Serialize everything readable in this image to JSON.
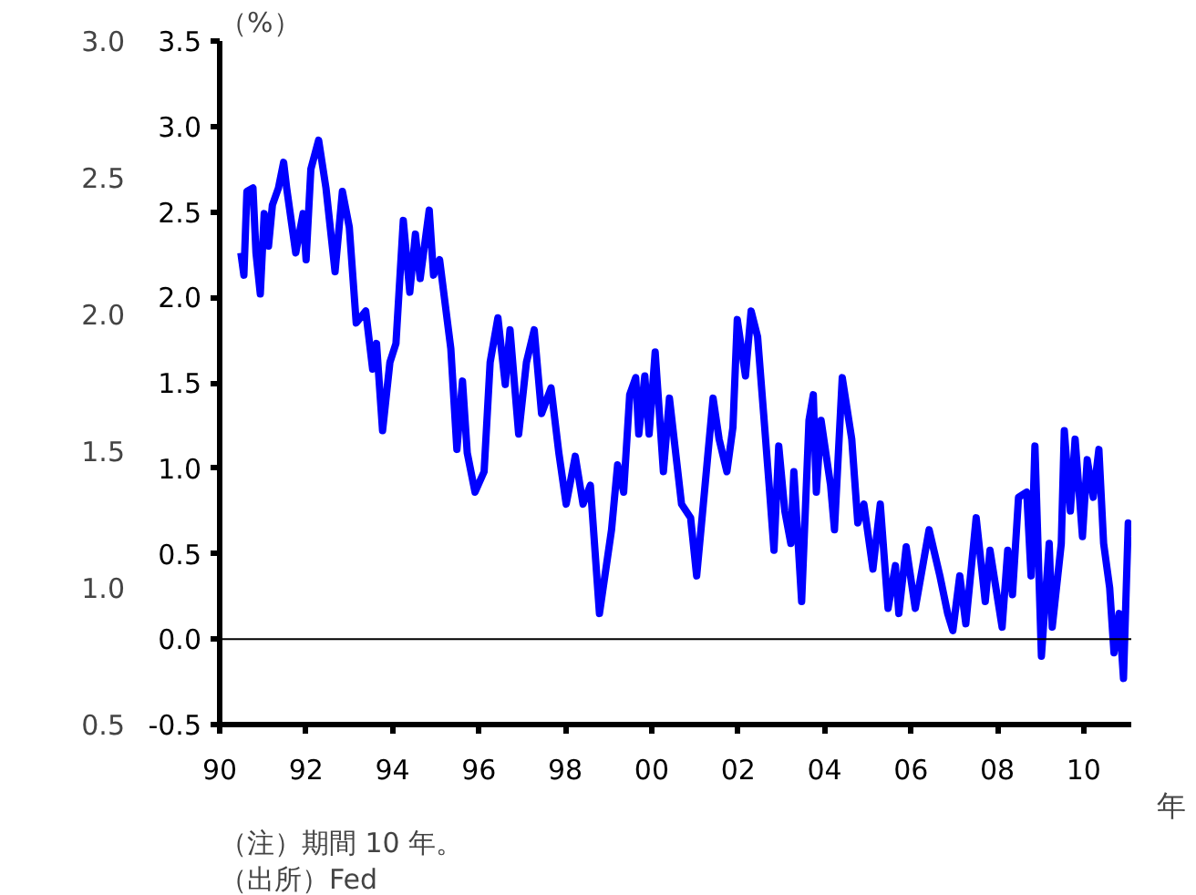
{
  "chart_data": {
    "type": "line",
    "ylabel": "（%）",
    "xlabel": "年",
    "annotations": [
      "（注）期間 10 年。",
      "（出所）Fed"
    ],
    "x": [
      1990.49,
      1990.56,
      1990.63,
      1990.77,
      1990.84,
      1990.94,
      1991.03,
      1991.13,
      1991.22,
      1991.36,
      1991.48,
      1991.55,
      1991.76,
      1991.93,
      1992.0,
      1992.11,
      1992.29,
      1992.46,
      1992.67,
      1992.84,
      1993.0,
      1993.16,
      1993.38,
      1993.54,
      1993.63,
      1993.77,
      1993.94,
      1994.08,
      1994.25,
      1994.4,
      1994.53,
      1994.64,
      1994.85,
      1994.95,
      1995.09,
      1995.35,
      1995.49,
      1995.62,
      1995.73,
      1995.91,
      1996.12,
      1996.26,
      1996.44,
      1996.61,
      1996.72,
      1996.92,
      1997.1,
      1997.28,
      1997.45,
      1997.67,
      1997.85,
      1998.02,
      1998.23,
      1998.41,
      1998.58,
      1998.79,
      1999.07,
      1999.21,
      1999.35,
      1999.49,
      1999.63,
      1999.7,
      1999.84,
      1999.94,
      2000.08,
      2000.27,
      2000.41,
      2000.69,
      2000.9,
      2001.04,
      2001.18,
      2001.42,
      2001.56,
      2001.74,
      2001.88,
      2001.98,
      2002.17,
      2002.3,
      2002.45,
      2002.59,
      2002.73,
      2002.83,
      2002.94,
      2003.08,
      2003.22,
      2003.29,
      2003.47,
      2003.64,
      2003.74,
      2003.81,
      2003.92,
      2004.14,
      2004.23,
      2004.41,
      2004.63,
      2004.77,
      2004.91,
      2005.12,
      2005.29,
      2005.47,
      2005.64,
      2005.72,
      2005.89,
      2006.1,
      2006.42,
      2006.67,
      2006.85,
      2006.97,
      2007.13,
      2007.27,
      2007.51,
      2007.72,
      2007.83,
      2008.11,
      2008.24,
      2008.35,
      2008.49,
      2008.68,
      2008.78,
      2008.87,
      2009.02,
      2009.2,
      2009.27,
      2009.48,
      2009.55,
      2009.69,
      2009.8,
      2009.97,
      2010.08,
      2010.22,
      2010.35,
      2010.46,
      2010.6,
      2010.7,
      2010.82,
      2010.92,
      2011.03,
      2011.1
    ],
    "series": [
      {
        "color": "#0000ff",
        "values": [
          2.26,
          2.13,
          2.62,
          2.64,
          2.26,
          2.02,
          2.49,
          2.3,
          2.54,
          2.64,
          2.79,
          2.64,
          2.26,
          2.49,
          2.22,
          2.75,
          2.92,
          2.64,
          2.15,
          2.62,
          2.41,
          1.85,
          1.92,
          1.58,
          1.73,
          1.22,
          1.62,
          1.73,
          2.45,
          2.03,
          2.37,
          2.11,
          2.51,
          2.13,
          2.22,
          1.7,
          1.11,
          1.51,
          1.09,
          0.86,
          0.98,
          1.62,
          1.88,
          1.49,
          1.81,
          1.2,
          1.62,
          1.81,
          1.32,
          1.47,
          1.09,
          0.79,
          1.07,
          0.79,
          0.9,
          0.15,
          0.64,
          1.02,
          0.86,
          1.43,
          1.53,
          1.2,
          1.54,
          1.2,
          1.68,
          0.98,
          1.41,
          0.79,
          0.71,
          0.37,
          0.75,
          1.41,
          1.17,
          0.98,
          1.24,
          1.87,
          1.54,
          1.92,
          1.77,
          1.32,
          0.86,
          0.52,
          1.13,
          0.75,
          0.56,
          0.98,
          0.22,
          1.28,
          1.43,
          0.86,
          1.28,
          0.9,
          0.64,
          1.53,
          1.17,
          0.68,
          0.79,
          0.41,
          0.79,
          0.18,
          0.43,
          0.15,
          0.54,
          0.18,
          0.64,
          0.37,
          0.15,
          0.05,
          0.37,
          0.09,
          0.71,
          0.22,
          0.52,
          0.07,
          0.52,
          0.26,
          0.83,
          0.86,
          0.37,
          1.13,
          -0.1,
          0.56,
          0.07,
          0.56,
          1.22,
          0.75,
          1.17,
          0.6,
          1.05,
          0.83,
          1.11,
          0.56,
          0.3,
          -0.08,
          0.15,
          -0.23,
          0.68,
          0.6
        ]
      }
    ],
    "xlim": [
      1990,
      2011.1
    ],
    "xticks": [
      {
        "value": 1990,
        "label": "90"
      },
      {
        "value": 1992,
        "label": "92"
      },
      {
        "value": 1994,
        "label": "94"
      },
      {
        "value": 1996,
        "label": "96"
      },
      {
        "value": 1998,
        "label": "98"
      },
      {
        "value": 2000,
        "label": "00"
      },
      {
        "value": 2002,
        "label": "02"
      },
      {
        "value": 2004,
        "label": "04"
      },
      {
        "value": 2006,
        "label": "06"
      },
      {
        "value": 2008,
        "label": "08"
      },
      {
        "value": 2010,
        "label": "10"
      }
    ],
    "ylim": [
      -0.5,
      3.5
    ],
    "yticks": [
      {
        "value": -0.5,
        "label": "-0.5"
      },
      {
        "value": 0,
        "label": "0.0"
      },
      {
        "value": 0.5,
        "label": "0.5"
      },
      {
        "value": 1,
        "label": "1.0"
      },
      {
        "value": 1.5,
        "label": "1.5"
      },
      {
        "value": 2,
        "label": "2.0"
      },
      {
        "value": 2.5,
        "label": "2.5"
      },
      {
        "value": 3,
        "label": "3.0"
      },
      {
        "value": 3.5,
        "label": "3.5"
      }
    ],
    "y2lim": [
      0.5,
      3.0
    ],
    "y2ticks": [
      {
        "value": 0.5,
        "label": "0.5"
      },
      {
        "value": 1,
        "label": "1.0"
      },
      {
        "value": 1.5,
        "label": "1.5"
      },
      {
        "value": 2,
        "label": "2.0"
      },
      {
        "value": 2.5,
        "label": "2.5"
      },
      {
        "value": 3,
        "label": "3.0"
      }
    ],
    "ref_lines": [
      {
        "axis": "y",
        "value": 0,
        "color": "#000000"
      }
    ],
    "grid": false,
    "marker": "none",
    "line_style": "solid"
  }
}
